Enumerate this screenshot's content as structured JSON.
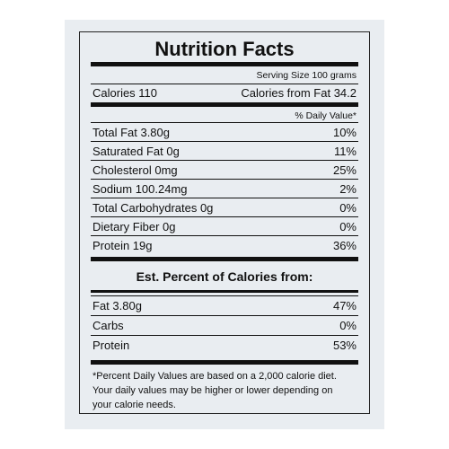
{
  "title": "Nutrition Facts",
  "serving_size": "Serving Size 100 grams",
  "calories": "Calories 110",
  "calories_from_fat": "Calories from Fat 34.2",
  "daily_value_header": "% Daily Value*",
  "daily_values": [
    {
      "label": "Total Fat 3.80g",
      "value": "10%"
    },
    {
      "label": "Saturated Fat 0g",
      "value": "11%"
    },
    {
      "label": "Cholesterol 0mg",
      "value": "25%"
    },
    {
      "label": "Sodium 100.24mg",
      "value": "2%"
    },
    {
      "label": "Total Carbohydrates 0g",
      "value": "0%"
    },
    {
      "label": "Dietary Fiber 0g",
      "value": "0%"
    },
    {
      "label": "Protein 19g",
      "value": "36%"
    }
  ],
  "calories_section": {
    "title": "Est. Percent of Calories from:",
    "rows": [
      {
        "label": "Fat 3.80g",
        "value": "47%"
      },
      {
        "label": "Carbs",
        "value": "0%"
      },
      {
        "label": "Protein",
        "value": "53%"
      }
    ]
  },
  "footnote": [
    "*Percent  Daily Values are based on a 2,000 calorie diet.",
    "Your daily values may be higher or lower depending on",
    "your calorie needs."
  ]
}
